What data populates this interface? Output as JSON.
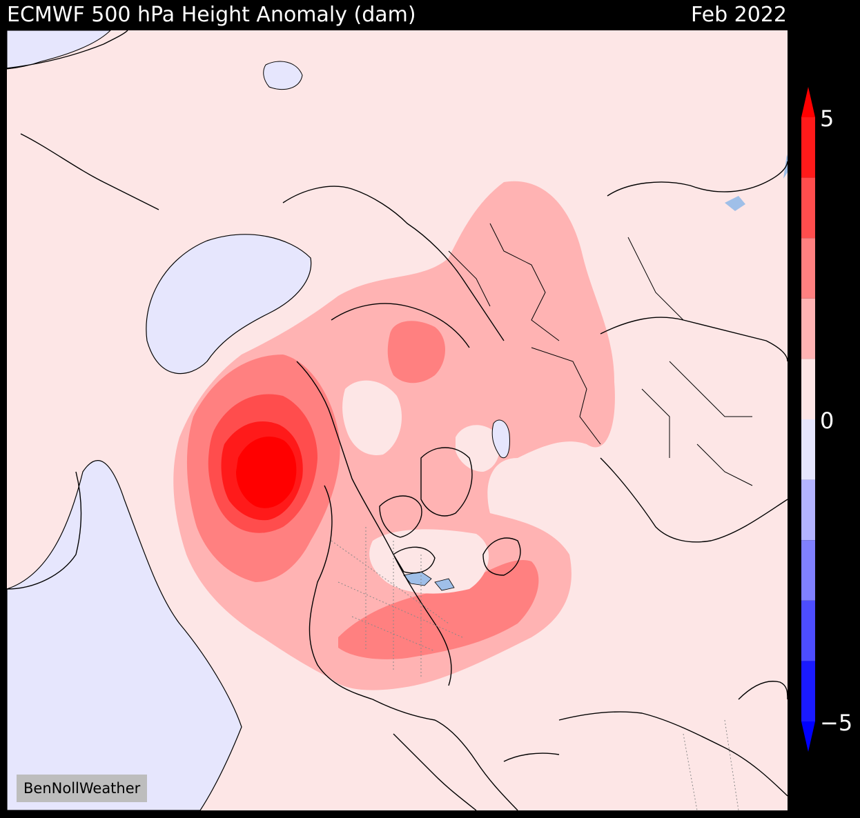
{
  "header": {
    "title": "ECMWF 500 hPa Height Anomaly (dam)",
    "date": "Feb 2022"
  },
  "watermark": "BenNollWeather",
  "colorbar": {
    "ticks": [
      "5",
      "0",
      "−5"
    ],
    "min": -5,
    "max": 5,
    "levels": [
      {
        "range": [
          4,
          5
        ],
        "color": "#ff1a1a"
      },
      {
        "range": [
          3,
          4
        ],
        "color": "#ff4d4d"
      },
      {
        "range": [
          2,
          3
        ],
        "color": "#ff8080"
      },
      {
        "range": [
          1,
          2
        ],
        "color": "#ffb3b3"
      },
      {
        "range": [
          0,
          1
        ],
        "color": "#fde6e6"
      },
      {
        "range": [
          -1,
          0
        ],
        "color": "#e6e6fd"
      },
      {
        "range": [
          -2,
          -1
        ],
        "color": "#b3b3ff"
      },
      {
        "range": [
          -3,
          -2
        ],
        "color": "#8080ff"
      },
      {
        "range": [
          -4,
          -3
        ],
        "color": "#4d4dff"
      },
      {
        "range": [
          -5,
          -4
        ],
        "color": "#1a1aff"
      }
    ],
    "extend_max_color": "#ff0000",
    "extend_min_color": "#0000ff"
  },
  "map": {
    "projection": "north polar stereographic",
    "background_color": "#fde6e6",
    "coastline_color": "#000000",
    "lake_color": "#9fbfe8",
    "features": [
      {
        "name": "max-anomaly-gulf-of-alaska",
        "level": "5+"
      },
      {
        "name": "positive-anomaly-eastern-us-atlantic",
        "level": "2-3"
      },
      {
        "name": "positive-anomaly-eastern-europe-russia",
        "level": "1-2"
      },
      {
        "name": "positive-anomaly-siberia-arctic",
        "level": "2-3"
      },
      {
        "name": "negative-anomaly-north-pacific-west",
        "level": "-1-0"
      },
      {
        "name": "negative-anomaly-east-pacific",
        "level": "-1-0"
      }
    ]
  }
}
